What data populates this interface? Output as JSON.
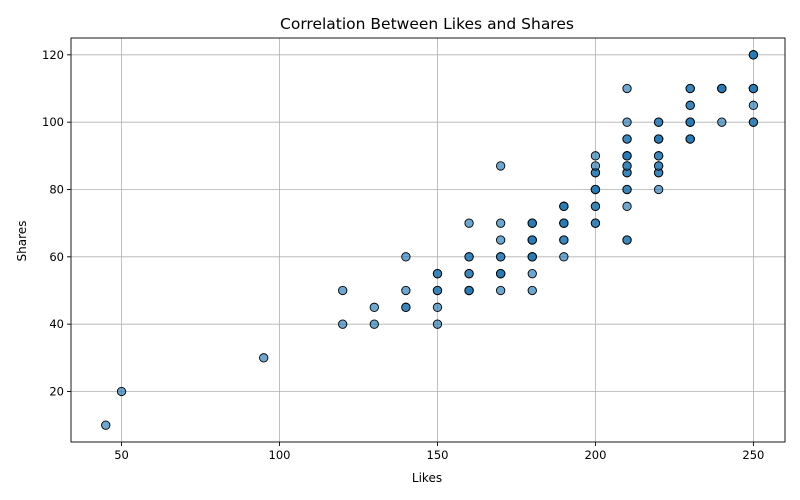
{
  "chart_data": {
    "type": "scatter",
    "title": "Correlation Between Likes and Shares",
    "xlabel": "Likes",
    "ylabel": "Shares",
    "xlim": [
      34,
      260
    ],
    "ylim": [
      5,
      125
    ],
    "xticks": [
      50,
      100,
      150,
      200,
      250
    ],
    "yticks": [
      20,
      40,
      60,
      80,
      100,
      120
    ],
    "grid": true,
    "marker_color": "#1f77b4",
    "marker_opacity": 0.65,
    "points": [
      [
        45,
        10
      ],
      [
        50,
        20
      ],
      [
        95,
        30
      ],
      [
        120,
        40
      ],
      [
        120,
        50
      ],
      [
        130,
        40
      ],
      [
        130,
        45
      ],
      [
        140,
        45
      ],
      [
        140,
        45
      ],
      [
        140,
        50
      ],
      [
        140,
        60
      ],
      [
        150,
        40
      ],
      [
        150,
        45
      ],
      [
        150,
        50
      ],
      [
        150,
        50
      ],
      [
        150,
        55
      ],
      [
        150,
        55
      ],
      [
        160,
        50
      ],
      [
        160,
        50
      ],
      [
        160,
        50
      ],
      [
        160,
        55
      ],
      [
        160,
        55
      ],
      [
        160,
        60
      ],
      [
        160,
        60
      ],
      [
        160,
        70
      ],
      [
        170,
        50
      ],
      [
        170,
        55
      ],
      [
        170,
        55
      ],
      [
        170,
        55
      ],
      [
        170,
        60
      ],
      [
        170,
        60
      ],
      [
        170,
        65
      ],
      [
        170,
        70
      ],
      [
        170,
        87
      ],
      [
        180,
        50
      ],
      [
        180,
        55
      ],
      [
        180,
        60
      ],
      [
        180,
        60
      ],
      [
        180,
        60
      ],
      [
        180,
        65
      ],
      [
        180,
        65
      ],
      [
        180,
        65
      ],
      [
        180,
        70
      ],
      [
        180,
        70
      ],
      [
        180,
        70
      ],
      [
        190,
        60
      ],
      [
        190,
        65
      ],
      [
        190,
        65
      ],
      [
        190,
        70
      ],
      [
        190,
        70
      ],
      [
        190,
        70
      ],
      [
        190,
        75
      ],
      [
        190,
        75
      ],
      [
        190,
        75
      ],
      [
        200,
        70
      ],
      [
        200,
        70
      ],
      [
        200,
        75
      ],
      [
        200,
        75
      ],
      [
        200,
        80
      ],
      [
        200,
        80
      ],
      [
        200,
        80
      ],
      [
        200,
        85
      ],
      [
        200,
        85
      ],
      [
        200,
        87
      ],
      [
        200,
        90
      ],
      [
        210,
        65
      ],
      [
        210,
        65
      ],
      [
        210,
        75
      ],
      [
        210,
        80
      ],
      [
        210,
        80
      ],
      [
        210,
        85
      ],
      [
        210,
        85
      ],
      [
        210,
        87
      ],
      [
        210,
        87
      ],
      [
        210,
        90
      ],
      [
        210,
        90
      ],
      [
        210,
        90
      ],
      [
        210,
        95
      ],
      [
        210,
        95
      ],
      [
        210,
        100
      ],
      [
        210,
        110
      ],
      [
        220,
        80
      ],
      [
        220,
        85
      ],
      [
        220,
        85
      ],
      [
        220,
        87
      ],
      [
        220,
        87
      ],
      [
        220,
        90
      ],
      [
        220,
        90
      ],
      [
        220,
        95
      ],
      [
        220,
        95
      ],
      [
        220,
        95
      ],
      [
        220,
        100
      ],
      [
        220,
        100
      ],
      [
        230,
        95
      ],
      [
        230,
        95
      ],
      [
        230,
        95
      ],
      [
        230,
        100
      ],
      [
        230,
        100
      ],
      [
        230,
        100
      ],
      [
        230,
        105
      ],
      [
        230,
        105
      ],
      [
        230,
        110
      ],
      [
        230,
        110
      ],
      [
        240,
        100
      ],
      [
        240,
        110
      ],
      [
        240,
        110
      ],
      [
        240,
        110
      ],
      [
        250,
        100
      ],
      [
        250,
        100
      ],
      [
        250,
        105
      ],
      [
        250,
        110
      ],
      [
        250,
        110
      ],
      [
        250,
        110
      ],
      [
        250,
        120
      ],
      [
        250,
        120
      ],
      [
        250,
        120
      ]
    ]
  }
}
